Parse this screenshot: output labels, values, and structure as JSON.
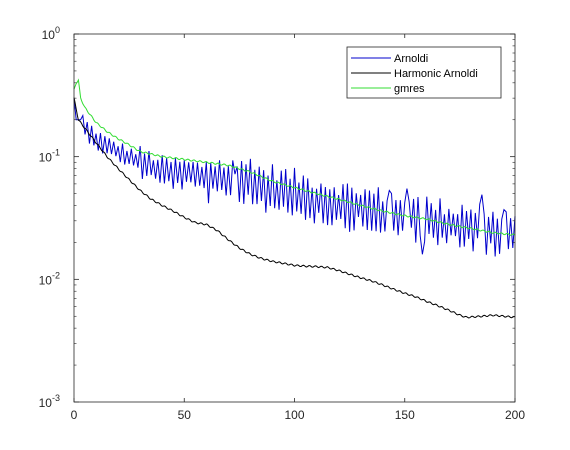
{
  "chart_data": {
    "type": "line",
    "title": "",
    "xlabel": "",
    "ylabel": "",
    "xlim": [
      0,
      200
    ],
    "ylim": [
      0.001,
      1
    ],
    "yscale": "log",
    "grid": false,
    "legend_position": "top-right",
    "x_ticks": [
      {
        "value": 0,
        "label": "0"
      },
      {
        "value": 50,
        "label": "50"
      },
      {
        "value": 100,
        "label": "100"
      },
      {
        "value": 150,
        "label": "150"
      },
      {
        "value": 200,
        "label": "200"
      }
    ],
    "y_ticks": [
      {
        "value": 1,
        "base": "10",
        "exp": "0"
      },
      {
        "value": 0.1,
        "base": "10",
        "exp": "-1"
      },
      {
        "value": 0.01,
        "base": "10",
        "exp": "-2"
      },
      {
        "value": 0.001,
        "base": "10",
        "exp": "-3"
      }
    ],
    "series": [
      {
        "name": "Arnoldi",
        "color": "#0000cc",
        "style": "oscillating",
        "points": [
          [
            0,
            0.3
          ],
          [
            1,
            0.2
          ],
          [
            3,
            0.2
          ],
          [
            5,
            0.17
          ],
          [
            10,
            0.14
          ],
          [
            15,
            0.12
          ],
          [
            20,
            0.11
          ],
          [
            25,
            0.1
          ],
          [
            30,
            0.09
          ],
          [
            40,
            0.075
          ],
          [
            50,
            0.072
          ],
          [
            60,
            0.067
          ],
          [
            70,
            0.062
          ],
          [
            80,
            0.058
          ],
          [
            90,
            0.055
          ],
          [
            100,
            0.05
          ],
          [
            110,
            0.045
          ],
          [
            120,
            0.041
          ],
          [
            130,
            0.038
          ],
          [
            140,
            0.035
          ],
          [
            150,
            0.033
          ],
          [
            160,
            0.031
          ],
          [
            170,
            0.028
          ],
          [
            180,
            0.027
          ],
          [
            190,
            0.025
          ],
          [
            200,
            0.022
          ]
        ],
        "spikes": [
          [
            80,
            0.096
          ],
          [
            73,
            0.072
          ],
          [
            134,
            0.053
          ],
          [
            143,
            0.053
          ],
          [
            151,
            0.055
          ],
          [
            185,
            0.049
          ],
          [
            195,
            0.037
          ],
          [
            158,
            0.016
          ],
          [
            165,
            0.019
          ],
          [
            199,
            0.018
          ]
        ]
      },
      {
        "name": "Harmonic Arnoldi",
        "color": "#000000",
        "style": "smooth",
        "points": [
          [
            0,
            0.3
          ],
          [
            2,
            0.2
          ],
          [
            5,
            0.17
          ],
          [
            10,
            0.13
          ],
          [
            15,
            0.1
          ],
          [
            20,
            0.08
          ],
          [
            25,
            0.065
          ],
          [
            30,
            0.053
          ],
          [
            35,
            0.045
          ],
          [
            40,
            0.04
          ],
          [
            45,
            0.036
          ],
          [
            50,
            0.032
          ],
          [
            55,
            0.029
          ],
          [
            60,
            0.028
          ],
          [
            65,
            0.025
          ],
          [
            70,
            0.021
          ],
          [
            75,
            0.018
          ],
          [
            80,
            0.016
          ],
          [
            85,
            0.0148
          ],
          [
            90,
            0.014
          ],
          [
            95,
            0.0135
          ],
          [
            100,
            0.013
          ],
          [
            105,
            0.0128
          ],
          [
            110,
            0.0127
          ],
          [
            115,
            0.0125
          ],
          [
            120,
            0.0118
          ],
          [
            125,
            0.011
          ],
          [
            130,
            0.0103
          ],
          [
            135,
            0.0097
          ],
          [
            140,
            0.009
          ],
          [
            145,
            0.0083
          ],
          [
            150,
            0.0077
          ],
          [
            155,
            0.0072
          ],
          [
            160,
            0.0066
          ],
          [
            165,
            0.0061
          ],
          [
            170,
            0.0056
          ],
          [
            175,
            0.0051
          ],
          [
            178,
            0.0049
          ],
          [
            185,
            0.005
          ],
          [
            190,
            0.0051
          ],
          [
            195,
            0.005
          ],
          [
            200,
            0.0049
          ]
        ]
      },
      {
        "name": "gmres",
        "color": "#33dd33",
        "style": "smooth",
        "points": [
          [
            0,
            0.35
          ],
          [
            1,
            0.4
          ],
          [
            2,
            0.42
          ],
          [
            3,
            0.3
          ],
          [
            5,
            0.25
          ],
          [
            10,
            0.19
          ],
          [
            15,
            0.16
          ],
          [
            20,
            0.14
          ],
          [
            25,
            0.125
          ],
          [
            30,
            0.11
          ],
          [
            35,
            0.105
          ],
          [
            40,
            0.1
          ],
          [
            50,
            0.095
          ],
          [
            60,
            0.09
          ],
          [
            70,
            0.085
          ],
          [
            80,
            0.075
          ],
          [
            90,
            0.063
          ],
          [
            100,
            0.056
          ],
          [
            110,
            0.05
          ],
          [
            120,
            0.045
          ],
          [
            130,
            0.04
          ],
          [
            140,
            0.036
          ],
          [
            150,
            0.033
          ],
          [
            160,
            0.031
          ],
          [
            170,
            0.028
          ],
          [
            180,
            0.026
          ],
          [
            190,
            0.024
          ],
          [
            200,
            0.023
          ]
        ]
      }
    ]
  }
}
